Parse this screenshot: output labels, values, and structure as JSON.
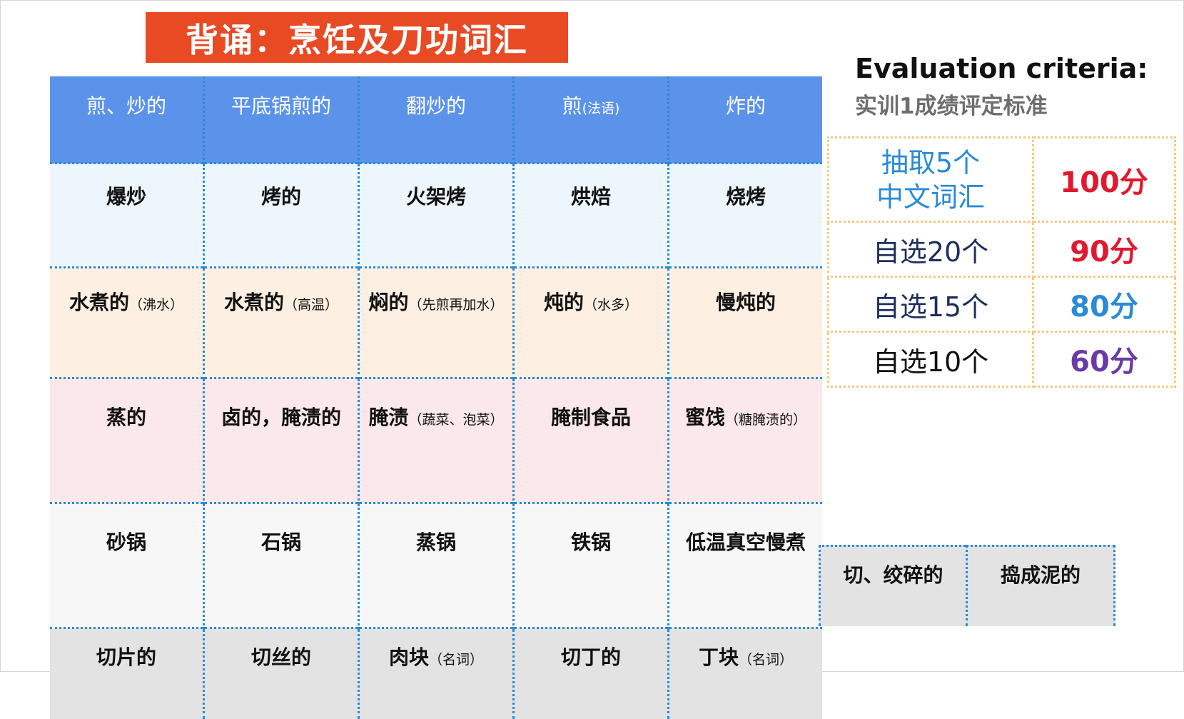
{
  "title": "背诵：烹饪及刀功词汇",
  "table": {
    "header": [
      {
        "main": "煎、炒的",
        "note": ""
      },
      {
        "main": "平底锅煎的",
        "note": ""
      },
      {
        "main": "翻炒的",
        "note": ""
      },
      {
        "main": "煎",
        "note": "(法语)"
      },
      {
        "main": "炸的",
        "note": ""
      }
    ],
    "rows": [
      [
        {
          "main": "爆炒",
          "note": ""
        },
        {
          "main": "烤的",
          "note": ""
        },
        {
          "main": "火架烤",
          "note": ""
        },
        {
          "main": "烘焙",
          "note": ""
        },
        {
          "main": "烧烤",
          "note": ""
        }
      ],
      [
        {
          "main": "水煮的",
          "note": "（沸水）"
        },
        {
          "main": "水煮的",
          "note": "（高温）"
        },
        {
          "main": "焖的",
          "note": "（先煎再加水）"
        },
        {
          "main": "炖的",
          "note": "（水多）"
        },
        {
          "main": "慢炖的",
          "note": ""
        }
      ],
      [
        {
          "main": "蒸的",
          "note": ""
        },
        {
          "main": "卤的，腌渍的",
          "note": ""
        },
        {
          "main": "腌渍",
          "note": "（蔬菜、泡菜）"
        },
        {
          "main": "腌制食品",
          "note": ""
        },
        {
          "main": "蜜饯",
          "note": "（糖腌渍的）"
        }
      ],
      [
        {
          "main": "砂锅",
          "note": ""
        },
        {
          "main": "石锅",
          "note": ""
        },
        {
          "main": "蒸锅",
          "note": ""
        },
        {
          "main": "铁锅",
          "note": ""
        },
        {
          "main": "低温真空慢煮",
          "note": ""
        }
      ],
      [
        {
          "main": "切片的",
          "note": ""
        },
        {
          "main": "切丝的",
          "note": ""
        },
        {
          "main": "肉块",
          "note": "（名词）"
        },
        {
          "main": "切丁的",
          "note": ""
        },
        {
          "main": "丁块",
          "note": "（名词）"
        }
      ]
    ],
    "extra_cells": [
      {
        "main": "切、绞碎的"
      },
      {
        "main": "捣成泥的"
      }
    ]
  },
  "evaluation": {
    "title": "Evaluation criteria:",
    "subtitle": "实训1成绩评定标准",
    "rows": [
      {
        "criterion_line1": "抽取5个",
        "criterion_line2": "中文词汇",
        "score": "100分",
        "color": "#e0192f"
      },
      {
        "criterion_line1": "自选20个",
        "criterion_line2": "",
        "score": "90分",
        "color": "#e0192f"
      },
      {
        "criterion_line1": "自选15个",
        "criterion_line2": "",
        "score": "80分",
        "color": "#2a8ad6"
      },
      {
        "criterion_line1": "自选10个",
        "criterion_line2": "",
        "score": "60分",
        "color": "#6a3aa8"
      }
    ]
  },
  "colors": {
    "banner": "#e84a24",
    "header_row": "#5b93ea",
    "divider": "#2a8ad6",
    "criteria_border": "#f6c97a"
  }
}
